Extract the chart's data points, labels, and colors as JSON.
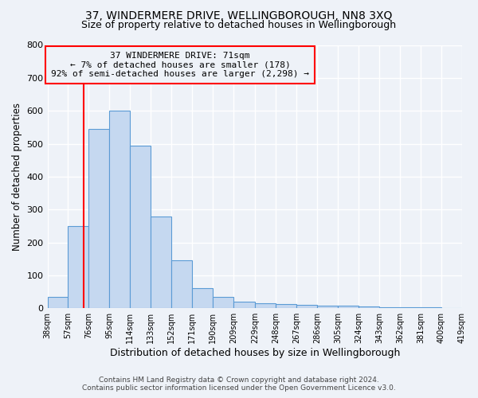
{
  "title": "37, WINDERMERE DRIVE, WELLINGBOROUGH, NN8 3XQ",
  "subtitle": "Size of property relative to detached houses in Wellingborough",
  "xlabel": "Distribution of detached houses by size in Wellingborough",
  "ylabel": "Number of detached properties",
  "bar_values": [
    35,
    250,
    545,
    600,
    495,
    278,
    145,
    62,
    35,
    20,
    15,
    12,
    10,
    8,
    7,
    5,
    3,
    2,
    2,
    1
  ],
  "bin_left": [
    38,
    57,
    76,
    95,
    114,
    133,
    152,
    171,
    190,
    209,
    229,
    248,
    267,
    286,
    305,
    324,
    343,
    362,
    381,
    400
  ],
  "bin_right": [
    57,
    76,
    95,
    114,
    133,
    152,
    171,
    190,
    209,
    229,
    248,
    267,
    286,
    305,
    324,
    343,
    362,
    381,
    400,
    419
  ],
  "tick_labels": [
    "38sqm",
    "57sqm",
    "76sqm",
    "95sqm",
    "114sqm",
    "133sqm",
    "152sqm",
    "171sqm",
    "190sqm",
    "209sqm",
    "229sqm",
    "248sqm",
    "267sqm",
    "286sqm",
    "305sqm",
    "324sqm",
    "343sqm",
    "362sqm",
    "381sqm",
    "400sqm",
    "419sqm"
  ],
  "tick_positions": [
    38,
    57,
    76,
    95,
    114,
    133,
    152,
    171,
    190,
    209,
    229,
    248,
    267,
    286,
    305,
    324,
    343,
    362,
    381,
    400,
    419
  ],
  "bar_color": "#c5d8f0",
  "bar_edge_color": "#5b9bd5",
  "property_line_x": 71,
  "property_line_color": "red",
  "annotation_line1": "37 WINDERMERE DRIVE: 71sqm",
  "annotation_line2": "← 7% of detached houses are smaller (178)",
  "annotation_line3": "92% of semi-detached houses are larger (2,298) →",
  "annotation_box_color": "red",
  "ylim": [
    0,
    800
  ],
  "xlim": [
    38,
    419
  ],
  "yticks": [
    0,
    100,
    200,
    300,
    400,
    500,
    600,
    700,
    800
  ],
  "footer1": "Contains HM Land Registry data © Crown copyright and database right 2024.",
  "footer2": "Contains public sector information licensed under the Open Government Licence v3.0.",
  "background_color": "#eef2f8",
  "grid_color": "#ffffff",
  "title_fontsize": 10,
  "subtitle_fontsize": 9,
  "figsize": [
    6.0,
    5.0
  ],
  "dpi": 100
}
